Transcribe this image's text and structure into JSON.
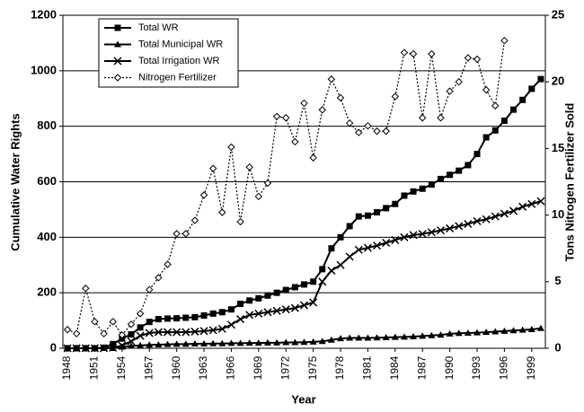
{
  "chart_data": {
    "type": "line",
    "x": [
      1948,
      1949,
      1950,
      1951,
      1952,
      1953,
      1954,
      1955,
      1956,
      1957,
      1958,
      1959,
      1960,
      1961,
      1962,
      1963,
      1964,
      1965,
      1966,
      1967,
      1968,
      1969,
      1970,
      1971,
      1972,
      1973,
      1974,
      1975,
      1976,
      1977,
      1978,
      1979,
      1980,
      1981,
      1982,
      1983,
      1984,
      1985,
      1986,
      1987,
      1988,
      1989,
      1990,
      1991,
      1992,
      1993,
      1994,
      1995,
      1996,
      1997,
      1998,
      1999,
      2000
    ],
    "series": [
      {
        "name": "Total WR",
        "color": "#000000",
        "marker": "square",
        "dash": false,
        "values": [
          0,
          0,
          0,
          0,
          2,
          15,
          35,
          50,
          75,
          95,
          105,
          107,
          108,
          110,
          112,
          118,
          125,
          130,
          140,
          160,
          172,
          180,
          190,
          200,
          210,
          220,
          230,
          240,
          285,
          360,
          400,
          440,
          475,
          478,
          490,
          505,
          520,
          550,
          565,
          575,
          590,
          610,
          625,
          640,
          660,
          700,
          760,
          785,
          820,
          860,
          895,
          935,
          970
        ]
      },
      {
        "name": "Total Municipal WR",
        "color": "#000000",
        "marker": "triangle",
        "dash": false,
        "values": [
          0,
          0,
          0,
          0,
          0,
          0,
          5,
          8,
          10,
          12,
          13,
          14,
          15,
          15,
          16,
          16,
          17,
          17,
          18,
          18,
          19,
          19,
          20,
          20,
          21,
          21,
          22,
          23,
          25,
          30,
          35,
          37,
          37,
          37,
          38,
          39,
          40,
          41,
          42,
          44,
          46,
          48,
          52,
          54,
          55,
          56,
          58,
          60,
          62,
          64,
          66,
          68,
          72
        ]
      },
      {
        "name": "Total Irrigation WR",
        "color": "#000000",
        "marker": "x",
        "dash": false,
        "values": [
          0,
          0,
          0,
          0,
          0,
          2,
          10,
          25,
          45,
          55,
          58,
          58,
          58,
          58,
          60,
          62,
          65,
          70,
          85,
          105,
          120,
          125,
          130,
          135,
          140,
          145,
          155,
          165,
          240,
          280,
          300,
          330,
          355,
          362,
          370,
          380,
          390,
          400,
          408,
          412,
          418,
          425,
          432,
          440,
          448,
          458,
          465,
          475,
          485,
          495,
          510,
          520,
          530
        ]
      },
      {
        "name": "Nitrogen Fertilizer",
        "color": "#000000",
        "marker": "diamond",
        "dash": true,
        "axis": "y2",
        "values": [
          1.4,
          1.1,
          4.5,
          2.0,
          1.1,
          2.0,
          1.0,
          1.8,
          2.6,
          4.4,
          5.3,
          6.3,
          8.6,
          8.6,
          9.6,
          11.5,
          13.5,
          10.2,
          15.1,
          9.5,
          13.6,
          11.4,
          12.4,
          17.4,
          17.3,
          15.5,
          18.4,
          14.3,
          17.9,
          20.2,
          18.8,
          16.9,
          16.2,
          16.7,
          16.3,
          16.3,
          18.9,
          22.2,
          22.1,
          17.3,
          22.1,
          17.3,
          19.3,
          20.0,
          21.8,
          21.7,
          19.4,
          18.2,
          23.1,
          null,
          null,
          null,
          null
        ]
      }
    ],
    "x_label": "Year",
    "y_label": "Cumulative Water Rights",
    "y2_label": "Tons Nitrogen Fertilizer Sold",
    "xlim": [
      1947.5,
      2000.5
    ],
    "xticks": [
      1948,
      1951,
      1954,
      1957,
      1960,
      1963,
      1966,
      1969,
      1972,
      1975,
      1978,
      1981,
      1984,
      1987,
      1990,
      1993,
      1996,
      1999
    ],
    "ylim": [
      0,
      1200
    ],
    "yticks": [
      0,
      200,
      400,
      600,
      800,
      1000,
      1200
    ],
    "y2lim": [
      0,
      25
    ],
    "y2ticks": [
      0,
      5,
      10,
      15,
      20,
      25
    ],
    "grid": true,
    "legend": "top-left"
  }
}
